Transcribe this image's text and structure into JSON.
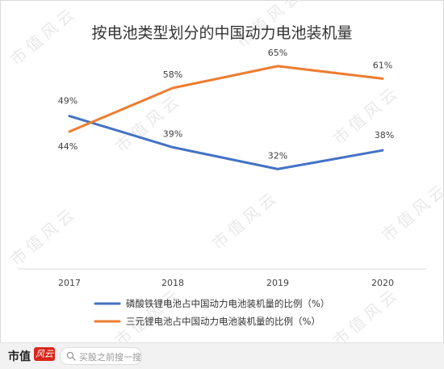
{
  "chart_data": {
    "type": "line",
    "title": "按电池类型划分的中国动力电池装机量",
    "categories": [
      "2017",
      "2018",
      "2019",
      "2020"
    ],
    "series": [
      {
        "name": "磷酸铁锂电池占中国动力电池装机量的比例（%）",
        "color": "#4472c4",
        "values": [
          49,
          39,
          32,
          38
        ],
        "labels": [
          "49%",
          "39%",
          "32%",
          "38%"
        ]
      },
      {
        "name": "三元锂电池占中国动力电池装机量的比例（%）",
        "color": "#ed7d31",
        "values": [
          44,
          58,
          65,
          61
        ],
        "labels": [
          "44%",
          "58%",
          "65%",
          "61%"
        ]
      }
    ],
    "ylim": [
      0,
      80
    ],
    "grid": false,
    "legend": "bottom"
  },
  "watermark": "市值风云",
  "footer": {
    "brand": "市值",
    "badge": "风云",
    "search_placeholder": "买股之前搜一搜",
    "search_icon": "search-icon"
  }
}
